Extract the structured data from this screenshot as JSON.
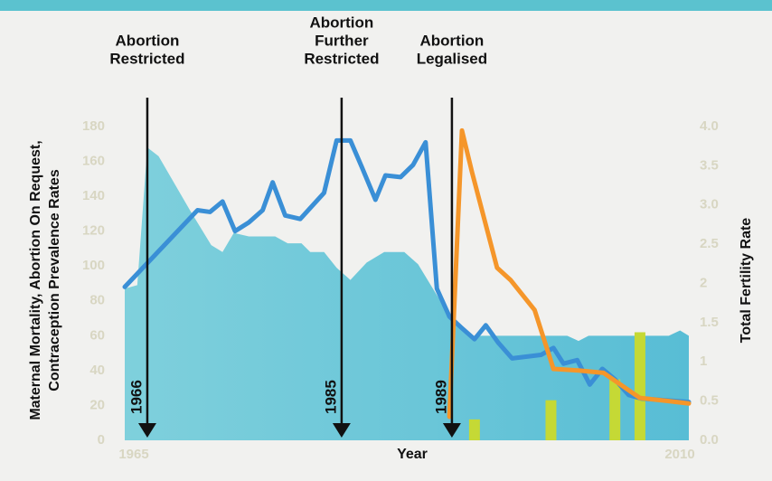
{
  "chart_data": {
    "type": "line",
    "xlabel": "Year",
    "ylabel": [
      "Maternal Mortality, Abortion On Request,",
      "Contraception Prevalence Rates"
    ],
    "y2label": "Total Fertility Rate",
    "xlim": [
      1965,
      2010
    ],
    "xticks": [
      1965,
      2010
    ],
    "ylim": [
      0,
      180
    ],
    "yticks": [
      0,
      20,
      40,
      60,
      80,
      100,
      120,
      140,
      160,
      180
    ],
    "y2lim": [
      0,
      4
    ],
    "y2ticks": [
      {
        "value": 0,
        "label": "0.0"
      },
      0.5,
      1,
      1.5,
      2,
      2.5,
      {
        "value": 3,
        "label": "3.0"
      },
      3.5,
      {
        "value": 4,
        "label": "4.0"
      }
    ],
    "series": [
      {
        "type": "area",
        "color": "#7fd0dc",
        "color_end": "#58bdd5",
        "x": [
          1965,
          1966.0,
          1966.8,
          1967.7,
          1970.2,
          1971.9,
          1972.8,
          1973.7,
          1974.9,
          1977.0,
          1978.0,
          1979.1,
          1979.8,
          1980.9,
          1981.9,
          1983.0,
          1984.3,
          1985.7,
          1987.3,
          1988.4,
          1989.5,
          1990.7,
          1991.8,
          1992.7,
          2000.3,
          2001.2,
          2002.0,
          2008.4,
          2009.3,
          2010
        ],
        "values": [
          87,
          89,
          168,
          163,
          132,
          112,
          108,
          119,
          117,
          117,
          113,
          113,
          108,
          108,
          99,
          92,
          102,
          108,
          108,
          101,
          88,
          74,
          66,
          60,
          60,
          57,
          60,
          60,
          63,
          60
        ]
      },
      {
        "type": "bar",
        "color": "#c5d935",
        "x": [
          1992.9,
          1999.0,
          2004.1,
          2006.1
        ],
        "values": [
          12,
          23,
          35,
          62
        ]
      },
      {
        "type": "line",
        "color": "#3a8fd6",
        "x": [
          1965,
          1970.8,
          1971.8,
          1972.8,
          1973.8,
          1974.9,
          1976.0,
          1976.8,
          1977.8,
          1979.0,
          1980.9,
          1981.9,
          1983.0,
          1983.9,
          1985.0,
          1985.8,
          1987.0,
          1988.0,
          1989.0,
          1989.9,
          1990.9,
          1991.8,
          1992.9,
          1993.8,
          1994.8,
          1995.9,
          1998.2,
          1999.2,
          2000.0,
          2001.1,
          2002.1,
          2003.1,
          2004.1,
          2005.2,
          2006.2,
          2010
        ],
        "values": [
          88,
          132,
          131,
          137,
          120,
          125,
          132,
          148,
          129,
          127,
          142,
          172,
          172,
          157,
          138,
          152,
          151,
          158,
          171,
          87,
          71,
          65,
          58,
          66,
          56,
          47,
          49,
          53,
          44,
          46,
          32,
          41,
          35,
          26,
          24,
          22
        ]
      },
      {
        "type": "line",
        "axis": "y2",
        "color": "#f5962a",
        "x": [
          1990.9,
          1991.9,
          1992.7,
          1994.7,
          1995.8,
          1997.7,
          1999.2,
          2001.2,
          2003.2,
          2006.1,
          2008.4,
          2010
        ],
        "values": [
          0.3,
          3.95,
          3.42,
          2.2,
          2.04,
          1.66,
          0.91,
          0.89,
          0.86,
          0.54,
          0.5,
          0.47
        ]
      }
    ],
    "events": [
      {
        "x": 1966.8,
        "year": "1966",
        "label": [
          "Abortion",
          "Restricted"
        ]
      },
      {
        "x": 1982.3,
        "year": "1985",
        "label": [
          "Abortion",
          "Further",
          "Restricted"
        ]
      },
      {
        "x": 1991.1,
        "year": "1989",
        "label": [
          "Abortion",
          "Legalised"
        ]
      }
    ]
  }
}
